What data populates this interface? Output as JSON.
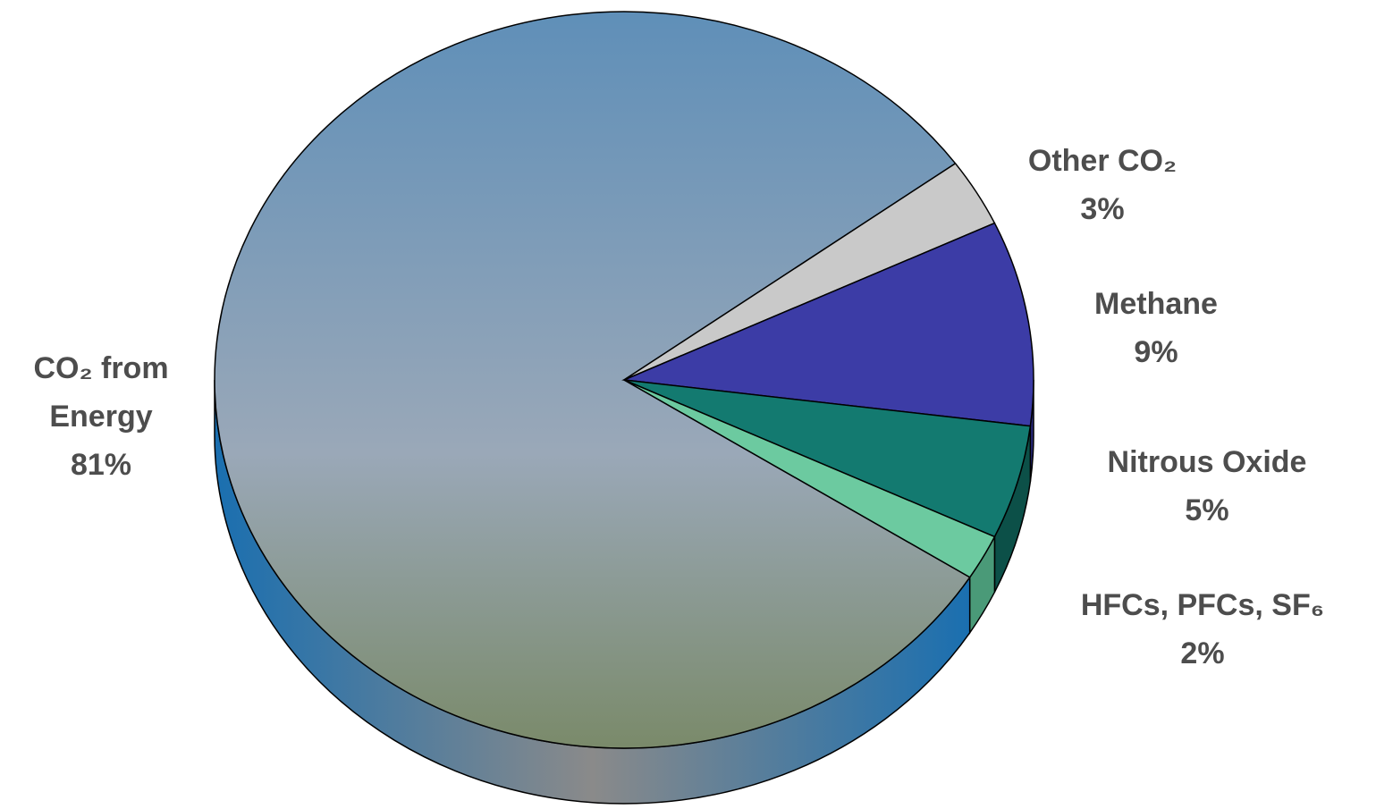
{
  "chart_data": {
    "type": "pie",
    "categories": [
      "CO₂ from Energy",
      "Other CO₂",
      "Methane",
      "Nitrous Oxide",
      "HFCs, PFCs, SF₆"
    ],
    "values": [
      81,
      3,
      9,
      5,
      2
    ],
    "value_labels": [
      "81%",
      "3%",
      "9%",
      "5%",
      "2%"
    ],
    "colors": [
      "#4f7fae",
      "#c9c9c9",
      "#3c3ca6",
      "#137a70",
      "#6ccaa0"
    ]
  }
}
